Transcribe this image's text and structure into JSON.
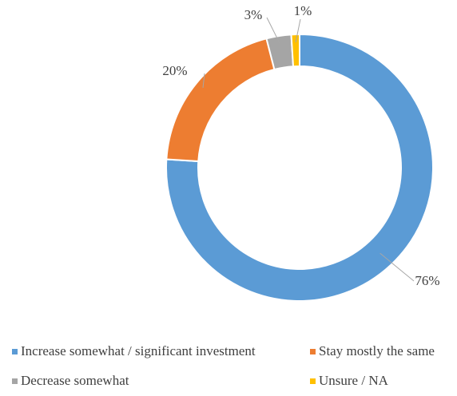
{
  "chart_data": {
    "type": "donut",
    "categories": [
      "Increase somewhat / significant investment",
      "Stay mostly the same",
      "Decrease somewhat",
      "Unsure / NA"
    ],
    "values": [
      76,
      20,
      3,
      1
    ],
    "value_labels": [
      "76%",
      "20%",
      "3%",
      "1%"
    ],
    "colors": [
      "#5b9bd5",
      "#ed7d31",
      "#a5a5a5",
      "#ffc000"
    ],
    "legend": "bottom"
  }
}
